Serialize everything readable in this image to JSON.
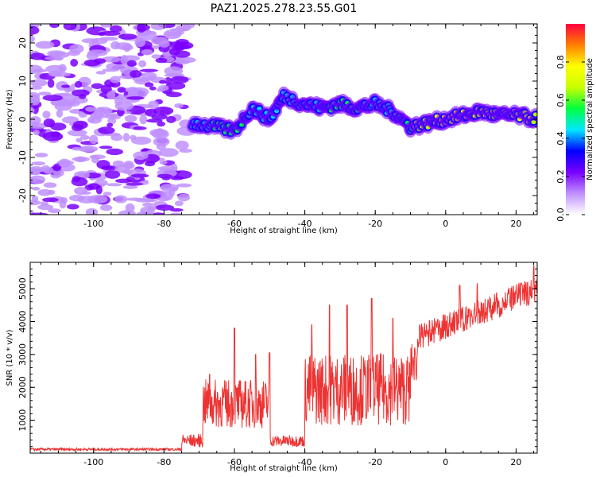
{
  "title": "PAZ1.2025.278.23.55.G01",
  "chart_data": [
    {
      "type": "heatmap",
      "xlabel": "Height of straight line (km)",
      "ylabel": "Frequency (Hz)",
      "xlim": [
        -118,
        26
      ],
      "ylim": [
        -25,
        25
      ],
      "xticks": [
        -100,
        -80,
        -60,
        -40,
        -20,
        0,
        20
      ],
      "xtick_labels": [
        "-100",
        "-80",
        "-60",
        "-40",
        "-20",
        "0",
        "20"
      ],
      "yticks": [
        -20,
        -10,
        0,
        10,
        20
      ],
      "ytick_labels": [
        "-20",
        "-10",
        "0",
        "10",
        "20"
      ],
      "colorbar": {
        "label": "Normalized spectral amplitude",
        "range": [
          0,
          1
        ],
        "ticks": [
          0,
          0.2,
          0.4,
          0.6,
          0.8
        ],
        "tick_labels": [
          "0.0",
          "0.2",
          "0.4",
          "0.6",
          "0.8"
        ],
        "colormap": [
          "#ffffff",
          "#c090ff",
          "#7a00ff",
          "#0000ff",
          "#00e8ff",
          "#00ff40",
          "#c8ff00",
          "#ffff00",
          "#ff8000",
          "#ff0040"
        ]
      },
      "noise_region_x": [
        -118,
        -73
      ],
      "ridge": [
        {
          "x": -72,
          "f": -1,
          "amp": 0.45
        },
        {
          "x": -66,
          "f": -2,
          "amp": 0.5
        },
        {
          "x": -60,
          "f": -3,
          "amp": 0.55
        },
        {
          "x": -55,
          "f": 3,
          "amp": 0.45
        },
        {
          "x": -50,
          "f": 0,
          "amp": 0.45
        },
        {
          "x": -46,
          "f": 6,
          "amp": 0.4
        },
        {
          "x": -40,
          "f": 4,
          "amp": 0.45
        },
        {
          "x": -35,
          "f": 3,
          "amp": 0.5
        },
        {
          "x": -30,
          "f": 4,
          "amp": 0.5
        },
        {
          "x": -25,
          "f": 3,
          "amp": 0.5
        },
        {
          "x": -20,
          "f": 4,
          "amp": 0.45
        },
        {
          "x": -15,
          "f": 2,
          "amp": 0.5
        },
        {
          "x": -10,
          "f": -2,
          "amp": 0.6
        },
        {
          "x": -5,
          "f": -1,
          "amp": 0.7
        },
        {
          "x": 0,
          "f": 0,
          "amp": 0.75
        },
        {
          "x": 5,
          "f": 1,
          "amp": 0.8
        },
        {
          "x": 10,
          "f": 2,
          "amp": 0.78
        },
        {
          "x": 15,
          "f": 1,
          "amp": 0.75
        },
        {
          "x": 20,
          "f": 1,
          "amp": 0.8
        },
        {
          "x": 26,
          "f": 0,
          "amp": 0.7
        }
      ]
    },
    {
      "type": "line",
      "xlabel": "Height of straight line (km)",
      "ylabel": "SNR (10 * v/v)",
      "xlim": [
        -118,
        26
      ],
      "ylim": [
        0,
        5800
      ],
      "xticks": [
        -100,
        -80,
        -60,
        -40,
        -20,
        0,
        20
      ],
      "xtick_labels": [
        "-100",
        "-80",
        "-60",
        "-40",
        "-20",
        "0",
        "20"
      ],
      "yticks": [
        1000,
        2000,
        3000,
        4000,
        5000
      ],
      "ytick_labels": [
        "1000",
        "2000",
        "3000",
        "4000",
        "5000"
      ],
      "series": [
        {
          "name": "SNR",
          "color": "#ee3333",
          "segments": [
            {
              "x_from": -118,
              "x_to": -75,
              "base": 100,
              "noise": 80
            },
            {
              "x_from": -75,
              "x_to": -69,
              "base": 300,
              "noise": 400
            },
            {
              "x_from": -69,
              "x_to": -50,
              "base": 1200,
              "noise": 1500
            },
            {
              "x_from": -50,
              "x_to": -40,
              "base": 300,
              "noise": 350
            },
            {
              "x_from": -40,
              "x_to": -10,
              "base": 1500,
              "noise": 2200
            },
            {
              "x_from": -10,
              "x_to": -8,
              "base": 2500,
              "noise": 1200
            },
            {
              "x_from": -8,
              "x_to": 26,
              "base": 4200,
              "noise": 800
            }
          ],
          "peaks": [
            {
              "x": -67,
              "y": 2400
            },
            {
              "x": -60,
              "y": 3800
            },
            {
              "x": -54,
              "y": 3000
            },
            {
              "x": -50,
              "y": 3050
            },
            {
              "x": -38,
              "y": 3900
            },
            {
              "x": -33,
              "y": 4500
            },
            {
              "x": -28,
              "y": 4500
            },
            {
              "x": -21,
              "y": 4700
            },
            {
              "x": -15,
              "y": 4100
            },
            {
              "x": 4,
              "y": 5100
            },
            {
              "x": 9,
              "y": 5150
            },
            {
              "x": 25,
              "y": 5700
            }
          ]
        }
      ]
    }
  ]
}
